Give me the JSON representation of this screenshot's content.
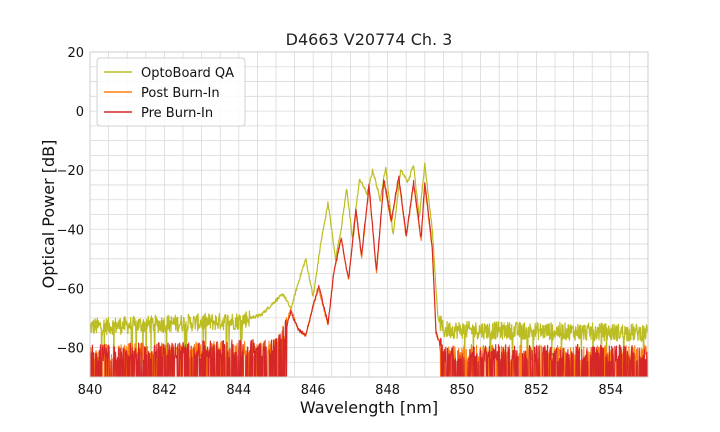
{
  "chart_data": {
    "type": "line",
    "title": "D4663 V20774 Ch. 3",
    "xlabel": "Wavelength [nm]",
    "ylabel": "Optical Power [dB]",
    "xlim": [
      840,
      855
    ],
    "ylim": [
      -90,
      20
    ],
    "xticks": [
      "840",
      "842",
      "844",
      "846",
      "848",
      "850",
      "852",
      "854"
    ],
    "yticks": [
      "20",
      "0",
      "−20",
      "−40",
      "−60",
      "−80"
    ],
    "grid": true,
    "legend_position": "top-left",
    "series": [
      {
        "name": "OptoBoard QA",
        "color": "#bcbd22",
        "noise_floor": -73,
        "points": [
          [
            840.0,
            -73
          ],
          [
            844.0,
            -71
          ],
          [
            844.6,
            -69
          ],
          [
            845.0,
            -64
          ],
          [
            845.2,
            -62
          ],
          [
            845.4,
            -67
          ],
          [
            845.6,
            -58
          ],
          [
            845.8,
            -50
          ],
          [
            846.0,
            -63
          ],
          [
            846.2,
            -45
          ],
          [
            846.4,
            -31
          ],
          [
            846.6,
            -50
          ],
          [
            846.75,
            -40
          ],
          [
            846.9,
            -26
          ],
          [
            847.05,
            -43
          ],
          [
            847.25,
            -23
          ],
          [
            847.45,
            -28
          ],
          [
            847.6,
            -20
          ],
          [
            847.8,
            -30
          ],
          [
            847.95,
            -19
          ],
          [
            848.15,
            -42
          ],
          [
            848.35,
            -20
          ],
          [
            848.55,
            -24
          ],
          [
            848.7,
            -18
          ],
          [
            848.85,
            -36
          ],
          [
            849.0,
            -18
          ],
          [
            849.2,
            -40
          ],
          [
            849.35,
            -70
          ],
          [
            849.5,
            -74
          ],
          [
            855.0,
            -75
          ]
        ]
      },
      {
        "name": "Post Burn-In",
        "color": "#ff7f0e",
        "noise_floor": -82,
        "points": [
          [
            840.0,
            -82
          ],
          [
            845.0,
            -80
          ],
          [
            845.2,
            -75
          ],
          [
            845.4,
            -67
          ],
          [
            845.6,
            -74
          ],
          [
            845.8,
            -76
          ],
          [
            846.0,
            -66
          ],
          [
            846.15,
            -60
          ],
          [
            846.4,
            -73
          ],
          [
            846.55,
            -55
          ],
          [
            846.75,
            -43
          ],
          [
            846.95,
            -57
          ],
          [
            847.15,
            -34
          ],
          [
            847.3,
            -50
          ],
          [
            847.5,
            -26
          ],
          [
            847.7,
            -55
          ],
          [
            847.9,
            -24
          ],
          [
            848.1,
            -38
          ],
          [
            848.3,
            -23
          ],
          [
            848.5,
            -43
          ],
          [
            848.7,
            -25
          ],
          [
            848.9,
            -44
          ],
          [
            849.0,
            -25
          ],
          [
            849.2,
            -47
          ],
          [
            849.3,
            -75
          ],
          [
            849.5,
            -82
          ],
          [
            855.0,
            -82
          ]
        ]
      },
      {
        "name": "Pre Burn-In",
        "color": "#d62728",
        "noise_floor": -82,
        "points": [
          [
            840.0,
            -82
          ],
          [
            845.0,
            -80
          ],
          [
            845.2,
            -76
          ],
          [
            845.4,
            -68
          ],
          [
            845.6,
            -74
          ],
          [
            845.8,
            -76
          ],
          [
            846.0,
            -66
          ],
          [
            846.15,
            -59
          ],
          [
            846.4,
            -72
          ],
          [
            846.55,
            -55
          ],
          [
            846.75,
            -43
          ],
          [
            846.95,
            -57
          ],
          [
            847.15,
            -33
          ],
          [
            847.3,
            -49
          ],
          [
            847.5,
            -25
          ],
          [
            847.7,
            -54
          ],
          [
            847.9,
            -23
          ],
          [
            848.1,
            -37
          ],
          [
            848.3,
            -22
          ],
          [
            848.5,
            -42
          ],
          [
            848.7,
            -24
          ],
          [
            848.9,
            -43
          ],
          [
            849.0,
            -24
          ],
          [
            849.2,
            -46
          ],
          [
            849.3,
            -75
          ],
          [
            849.5,
            -82
          ],
          [
            855.0,
            -82
          ]
        ]
      }
    ]
  }
}
